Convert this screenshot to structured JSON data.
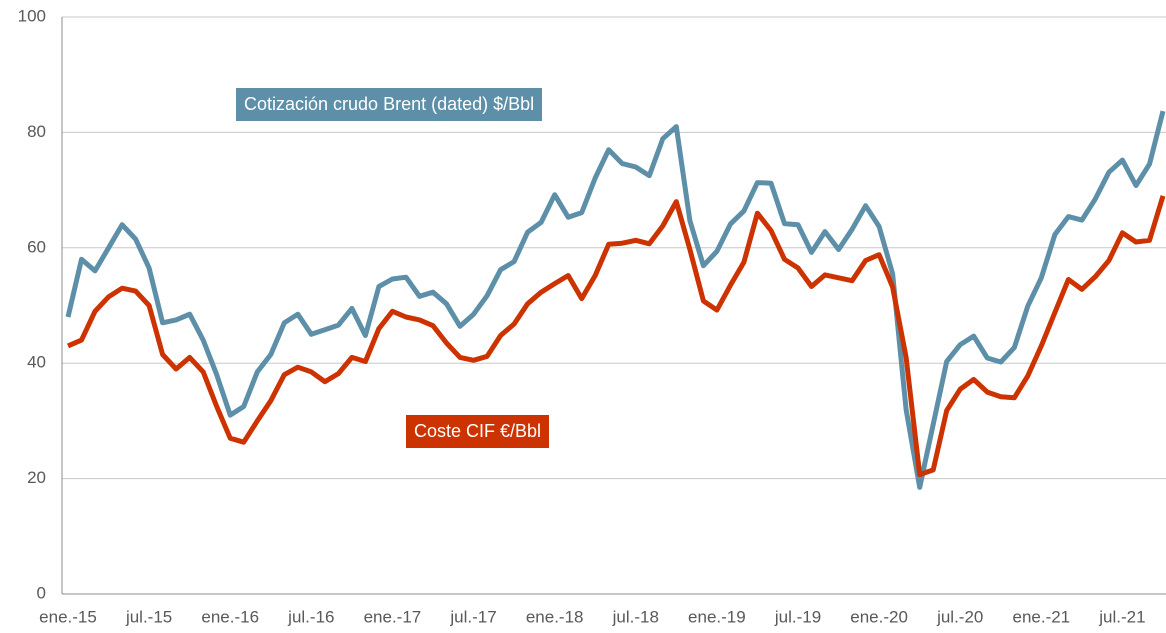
{
  "chart_data": {
    "type": "line",
    "categories": [
      "ene.-15",
      null,
      null,
      null,
      null,
      null,
      "jul.-15",
      null,
      null,
      null,
      null,
      null,
      "ene.-16",
      null,
      null,
      null,
      null,
      null,
      "jul.-16",
      null,
      null,
      null,
      null,
      null,
      "ene.-17",
      null,
      null,
      null,
      null,
      null,
      "jul.-17",
      null,
      null,
      null,
      null,
      null,
      "ene.-18",
      null,
      null,
      null,
      null,
      null,
      "jul.-18",
      null,
      null,
      null,
      null,
      null,
      "ene.-19",
      null,
      null,
      null,
      null,
      null,
      "jul.-19",
      null,
      null,
      null,
      null,
      null,
      "ene.-20",
      null,
      null,
      null,
      null,
      null,
      "jul.-20",
      null,
      null,
      null,
      null,
      null,
      "ene.-21",
      null,
      null,
      null,
      null,
      null,
      "jul.-21",
      null,
      null,
      null
    ],
    "series": [
      {
        "name": "Cotización crudo Brent (dated) $/Bbl",
        "color": "#5d8fa8",
        "values": [
          48,
          58,
          56,
          60,
          64,
          61.5,
          56.5,
          47,
          47.5,
          48.5,
          44,
          38,
          31,
          32.5,
          38.5,
          41.5,
          47,
          48.5,
          45,
          45.8,
          46.6,
          49.5,
          44.8,
          53.3,
          54.6,
          54.9,
          51.6,
          52.3,
          50.3,
          46.4,
          48.5,
          51.7,
          56.2,
          57.6,
          62.7,
          64.4,
          69.2,
          65.3,
          66.1,
          72.1,
          77,
          74.6,
          74,
          72.5,
          78.9,
          81,
          64.7,
          56.9,
          59.4,
          64.1,
          66.4,
          71.3,
          71.2,
          64.2,
          64,
          59.2,
          62.8,
          59.7,
          63.2,
          67.3,
          63.7,
          55.5,
          32,
          18.5,
          29.4,
          40.3,
          43.2,
          44.7,
          40.9,
          40.2,
          42.7,
          49.9,
          54.8,
          62.3,
          65.4,
          64.8,
          68.5,
          73.1,
          75.2,
          70.8,
          74.5,
          83.7
        ]
      },
      {
        "name": "Coste CIF €/Bbl",
        "color": "#cc3300",
        "values": [
          43,
          44,
          49,
          51.5,
          53,
          52.5,
          50,
          41.5,
          39,
          41,
          38.5,
          32.5,
          27,
          26.3,
          30,
          33.5,
          38,
          39.3,
          38.5,
          36.8,
          38.2,
          41,
          40.3,
          46,
          49,
          48,
          47.5,
          46.5,
          43.5,
          41,
          40.5,
          41.2,
          44.8,
          46.8,
          50.3,
          52.3,
          53.8,
          55.2,
          51.2,
          55.2,
          60.6,
          60.8,
          61.3,
          60.7,
          63.8,
          68,
          59.7,
          50.8,
          49.2,
          53.5,
          57.5,
          66,
          63,
          58,
          56.5,
          53.3,
          55.3,
          54.8,
          54.3,
          57.8,
          58.8,
          53.2,
          41,
          20.7,
          21.5,
          31.8,
          35.5,
          37.2,
          35,
          34.2,
          34,
          37.8,
          43,
          48.8,
          54.5,
          52.8,
          55,
          57.8,
          62.6,
          61,
          61.3,
          69
        ]
      }
    ],
    "ylim": [
      0,
      100
    ],
    "yticks": [
      0,
      20,
      40,
      60,
      80,
      100
    ],
    "grid": true
  }
}
